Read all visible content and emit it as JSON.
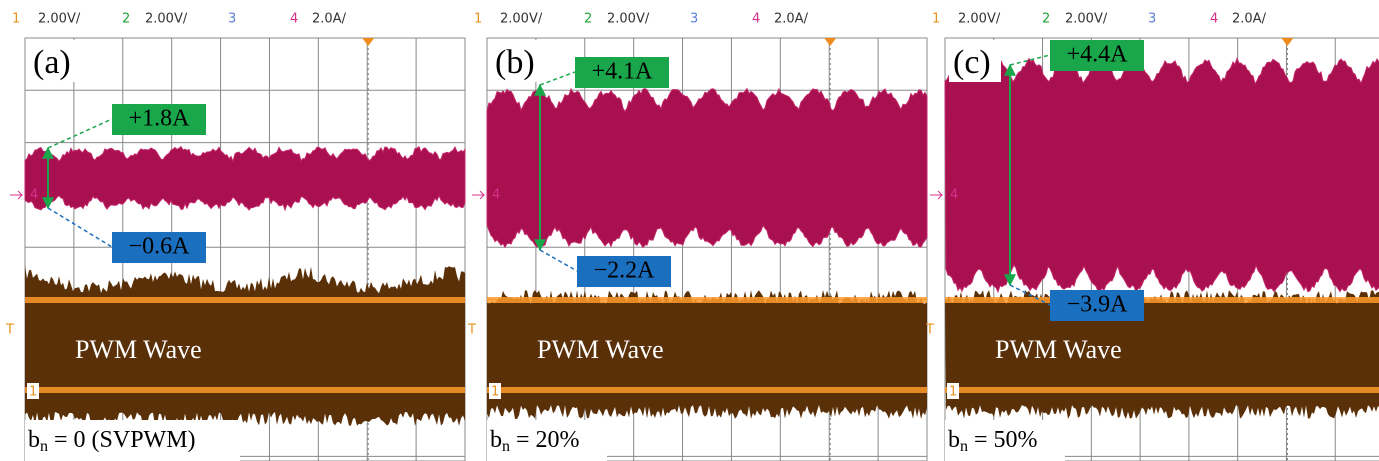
{
  "panels": [
    {
      "header": {
        "ch1": "1",
        "ch1_scale": "2.00V/",
        "ch2": "2",
        "ch2_scale": "2.00V/",
        "ch3": "3",
        "ch4": "4",
        "ch4_scale": "2.0A/"
      },
      "label": "(a)",
      "max_current": "+1.8A",
      "min_current": "−0.6A",
      "wave_label": "PWM Wave",
      "bn_symbol": "b",
      "bn_subscript": "n",
      "bn_value": " = 0 (SVPWM)",
      "ch4_marker": "4",
      "ch1_marker": "1",
      "trigger_marker": "T"
    },
    {
      "header": {
        "ch1": "1",
        "ch1_scale": "2.00V/",
        "ch2": "2",
        "ch2_scale": "2.00V/",
        "ch3": "3",
        "ch4": "4",
        "ch4_scale": "2.0A/"
      },
      "label": "(b)",
      "max_current": "+4.1A",
      "min_current": "−2.2A",
      "wave_label": "PWM Wave",
      "bn_symbol": "b",
      "bn_subscript": "n",
      "bn_value": " = 20%",
      "ch4_marker": "4",
      "ch1_marker": "1",
      "trigger_marker": "T"
    },
    {
      "header": {
        "ch1": "1",
        "ch1_scale": "2.00V/",
        "ch2": "2",
        "ch2_scale": "2.00V/",
        "ch3": "3",
        "ch4": "4",
        "ch4_scale": "2.0A/"
      },
      "label": "(c)",
      "max_current": "+4.4A",
      "min_current": "−3.9A",
      "wave_label": "PWM Wave",
      "bn_symbol": "b",
      "bn_subscript": "n",
      "bn_value": " = 50%",
      "ch4_marker": "4",
      "ch1_marker": "1",
      "trigger_marker": "T"
    }
  ]
}
